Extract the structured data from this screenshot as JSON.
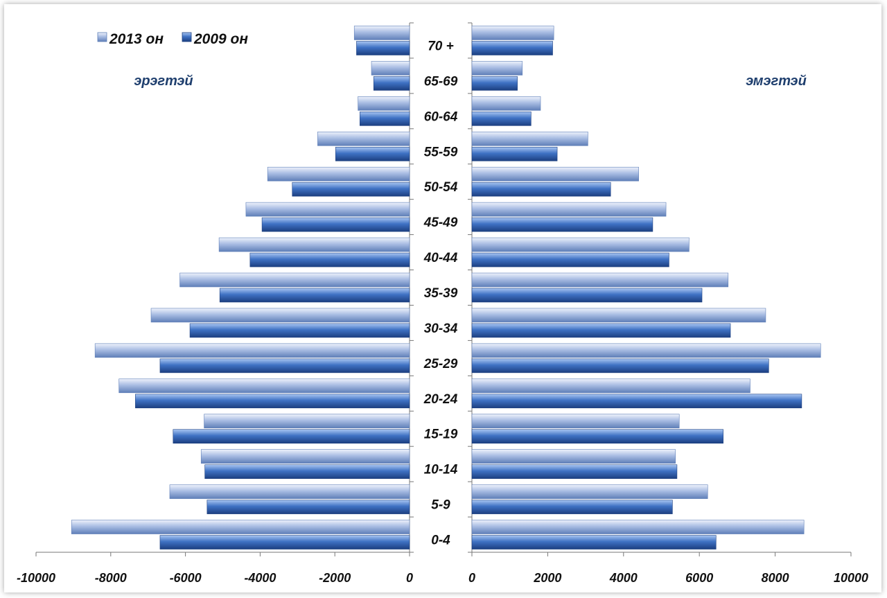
{
  "chart_data": {
    "type": "bar",
    "orientation": "horizontal",
    "layout": "population-pyramid",
    "legend": {
      "position": "top-left"
    },
    "grid": false,
    "side_labels": {
      "left": "эрэгтэй",
      "right": "эмэгтэй"
    },
    "categories": [
      "0-4",
      "5-9",
      "10-14",
      "15-19",
      "20-24",
      "25-29",
      "30-34",
      "35-39",
      "40-44",
      "45-49",
      "50-54",
      "55-59",
      "60-64",
      "65-69",
      "70 +"
    ],
    "xlim_left": [
      -10000,
      0
    ],
    "xlim_right": [
      0,
      10000
    ],
    "ticks_left": [
      "-10000",
      "-8000",
      "-6000",
      "-4000",
      "-2000",
      "0"
    ],
    "ticks_right": [
      "0",
      "2000",
      "4000",
      "6000",
      "8000",
      "10000"
    ],
    "series": [
      {
        "name": "2013 он",
        "color": "#9db3de",
        "male": [
          -9050,
          -6420,
          -5580,
          -5500,
          -7780,
          -8420,
          -6920,
          -6150,
          -5100,
          -4380,
          -3800,
          -2460,
          -1380,
          -1020,
          -1480
        ],
        "female": [
          8760,
          6220,
          5370,
          5470,
          7340,
          9200,
          7750,
          6760,
          5730,
          5120,
          4400,
          3060,
          1810,
          1330,
          2160
        ]
      },
      {
        "name": "2009 он",
        "color": "#3f6fbf",
        "male": [
          -6680,
          -5420,
          -5480,
          -6330,
          -7340,
          -6680,
          -5880,
          -5080,
          -4270,
          -3950,
          -3140,
          -1980,
          -1330,
          -960,
          -1420
        ],
        "female": [
          6440,
          5290,
          5410,
          6630,
          8700,
          7830,
          6820,
          6070,
          5200,
          4770,
          3660,
          2250,
          1560,
          1200,
          2130
        ]
      }
    ]
  }
}
